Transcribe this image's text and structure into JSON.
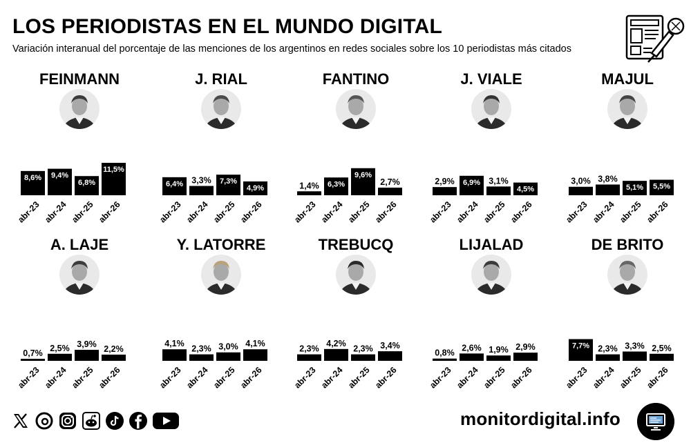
{
  "header": {
    "title": "LOS PERIODISTAS EN EL MUNDO DIGITAL",
    "subtitle": "Variación interanual del porcentaje de las menciones de los argentinos en redes sociales sobre los 10 periodistas más citados"
  },
  "chart_data": [
    {
      "type": "bar",
      "title": "FEINMANN",
      "categories": [
        "abr-23",
        "abr-24",
        "abr-25",
        "abr-26"
      ],
      "values": [
        8.6,
        9.4,
        6.8,
        11.5
      ],
      "labels": [
        "8,6%",
        "9,4%",
        "6,8%",
        "11,5%"
      ],
      "ylim": [
        0,
        11.5
      ]
    },
    {
      "type": "bar",
      "title": "J. RIAL",
      "categories": [
        "abr-23",
        "abr-24",
        "abr-25",
        "abr-26"
      ],
      "values": [
        6.4,
        3.3,
        7.3,
        4.9
      ],
      "labels": [
        "6,4%",
        "3,3%",
        "7,3%",
        "4,9%"
      ],
      "ylim": [
        0,
        11.5
      ]
    },
    {
      "type": "bar",
      "title": "FANTINO",
      "categories": [
        "abr-23",
        "abr-24",
        "abr-25",
        "abr-26"
      ],
      "values": [
        1.4,
        6.3,
        9.6,
        2.7
      ],
      "labels": [
        "1,4%",
        "6,3%",
        "9,6%",
        "2,7%"
      ],
      "ylim": [
        0,
        11.5
      ]
    },
    {
      "type": "bar",
      "title": "J. VIALE",
      "categories": [
        "abr-23",
        "abr-24",
        "abr-25",
        "abr-26"
      ],
      "values": [
        2.9,
        6.9,
        3.1,
        4.5
      ],
      "labels": [
        "2,9%",
        "6,9%",
        "3,1%",
        "4,5%"
      ],
      "ylim": [
        0,
        11.5
      ]
    },
    {
      "type": "bar",
      "title": "MAJUL",
      "categories": [
        "abr-23",
        "abr-24",
        "abr-25",
        "abr-26"
      ],
      "values": [
        3.0,
        3.8,
        5.1,
        5.5
      ],
      "labels": [
        "3,0%",
        "3,8%",
        "5,1%",
        "5,5%"
      ],
      "ylim": [
        0,
        11.5
      ]
    },
    {
      "type": "bar",
      "title": "A. LAJE",
      "categories": [
        "abr-23",
        "abr-24",
        "abr-25",
        "abr-26"
      ],
      "values": [
        0.7,
        2.5,
        3.9,
        2.2
      ],
      "labels": [
        "0,7%",
        "2,5%",
        "3,9%",
        "2,2%"
      ],
      "ylim": [
        0,
        11.5
      ]
    },
    {
      "type": "bar",
      "title": "Y. LATORRE",
      "categories": [
        "abr-23",
        "abr-24",
        "abr-25",
        "abr-26"
      ],
      "values": [
        4.1,
        2.3,
        3.0,
        4.1
      ],
      "labels": [
        "4,1%",
        "2,3%",
        "3,0%",
        "4,1%"
      ],
      "ylim": [
        0,
        11.5
      ]
    },
    {
      "type": "bar",
      "title": "TREBUCQ",
      "categories": [
        "abr-23",
        "abr-24",
        "abr-25",
        "abr-26"
      ],
      "values": [
        2.3,
        4.2,
        2.3,
        3.4
      ],
      "labels": [
        "2,3%",
        "4,2%",
        "2,3%",
        "3,4%"
      ],
      "ylim": [
        0,
        11.5
      ]
    },
    {
      "type": "bar",
      "title": "LIJALAD",
      "categories": [
        "abr-23",
        "abr-24",
        "abr-25",
        "abr-26"
      ],
      "values": [
        0.8,
        2.6,
        1.9,
        2.9
      ],
      "labels": [
        "0,8%",
        "2,6%",
        "1,9%",
        "2,9%"
      ],
      "ylim": [
        0,
        11.5
      ]
    },
    {
      "type": "bar",
      "title": "DE BRITO",
      "categories": [
        "abr-23",
        "abr-24",
        "abr-25",
        "abr-26"
      ],
      "values": [
        7.7,
        2.3,
        3.3,
        2.5
      ],
      "labels": [
        "7,7%",
        "2,3%",
        "3,3%",
        "2,5%"
      ],
      "ylim": [
        0,
        11.5
      ]
    }
  ],
  "social_icons": [
    "x-icon",
    "threads-icon",
    "instagram-icon",
    "reddit-icon",
    "tiktok-icon",
    "facebook-icon",
    "youtube-icon"
  ],
  "footer": {
    "site": "monitordigital.info"
  },
  "colors": {
    "bar": "#000000",
    "label_inside": "#ffffff",
    "label_outside": "#000000"
  }
}
